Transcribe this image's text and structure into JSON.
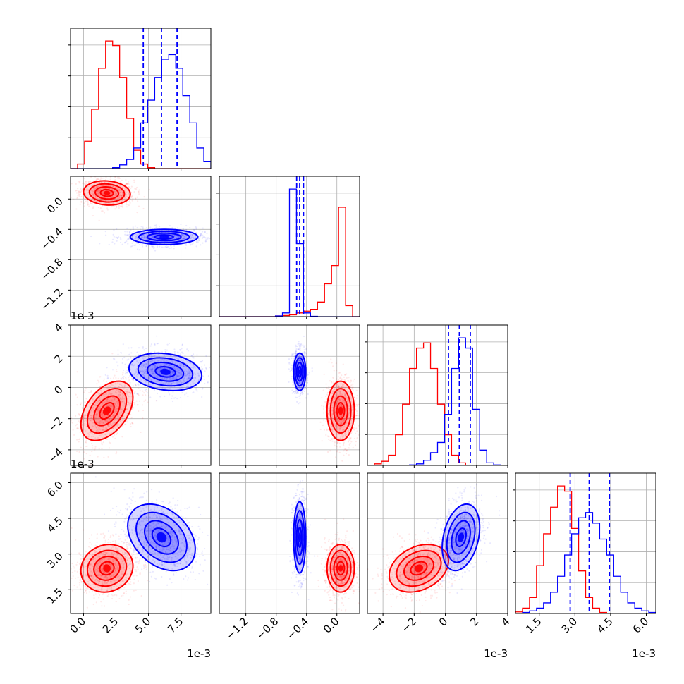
{
  "chart_data": {
    "type": "corner",
    "series": [
      {
        "id": "red",
        "color": "#ff0000"
      },
      {
        "id": "blue",
        "color": "#0000ff"
      }
    ],
    "axis_offsets": [
      "1e-3",
      "1e-3",
      "1e-3",
      "1e-3"
    ],
    "parameters": [
      {
        "index": 0,
        "range": [
          -1.0,
          9.8
        ],
        "ticks": [
          0.0,
          2.5,
          5.0,
          7.5
        ],
        "tick_labels": [
          "0.0",
          "2.5",
          "5.0",
          "7.5"
        ],
        "offset_label": "1e-3",
        "histogram": {
          "bin_edges": [
            -1.0,
            -0.46,
            0.08,
            0.62,
            1.16,
            1.7,
            2.24,
            2.78,
            3.32,
            3.86,
            4.4,
            4.94,
            5.48,
            6.02,
            6.56,
            7.1,
            7.64,
            8.18,
            8.72,
            9.26,
            9.8
          ],
          "red": [
            0,
            10,
            60,
            130,
            220,
            280,
            270,
            200,
            110,
            40,
            10,
            2,
            0,
            0,
            0,
            0,
            0,
            0,
            0,
            0
          ],
          "blue": [
            0,
            0,
            0,
            0,
            0,
            0,
            2,
            8,
            20,
            45,
            100,
            150,
            200,
            240,
            250,
            220,
            160,
            100,
            45,
            15
          ],
          "blue_quantiles": [
            4.6,
            6.0,
            7.2
          ]
        }
      },
      {
        "index": 1,
        "range": [
          -1.55,
          0.3
        ],
        "ticks": [
          -1.2,
          -0.8,
          -0.4,
          0.0
        ],
        "tick_labels": [
          "−1.2",
          "−0.8",
          "−0.4",
          "0.0"
        ],
        "offset_label": "1e-3",
        "histogram": {
          "bin_edges": [
            -1.55,
            -1.4575,
            -1.365,
            -1.2725,
            -1.18,
            -1.0875,
            -0.995,
            -0.9025,
            -0.81,
            -0.7175,
            -0.625,
            -0.5325,
            -0.44,
            -0.3475,
            -0.255,
            -0.1625,
            -0.07,
            0.0225,
            0.115,
            0.2075,
            0.3
          ],
          "red": [
            0,
            0,
            0,
            0,
            0,
            0,
            0,
            0,
            2,
            3,
            5,
            10,
            15,
            20,
            40,
            90,
            140,
            300,
            30,
            0
          ],
          "blue": [
            0,
            0,
            0,
            0,
            0,
            0,
            0,
            0,
            2,
            10,
            350,
            200,
            10,
            1,
            0,
            0,
            0,
            0,
            0,
            0
          ],
          "blue_quantiles": [
            -0.53,
            -0.49,
            -0.44
          ]
        }
      },
      {
        "index": 2,
        "range": [
          -5.0,
          4.0
        ],
        "ticks": [
          -4,
          -2,
          0,
          2,
          4
        ],
        "tick_labels": [
          "−4",
          "−2",
          "0",
          "2",
          "4"
        ],
        "offset_label": "1e-3",
        "histogram": {
          "bin_edges": [
            -5.0,
            -4.55,
            -4.1,
            -3.65,
            -3.2,
            -2.75,
            -2.3,
            -1.85,
            -1.4,
            -0.95,
            -0.5,
            -0.05,
            0.4,
            0.85,
            1.3,
            1.75,
            2.2,
            2.65,
            3.1,
            3.55,
            4.0
          ],
          "red": [
            0,
            3,
            8,
            20,
            60,
            120,
            190,
            230,
            240,
            190,
            120,
            60,
            20,
            5,
            0,
            0,
            0,
            0,
            0,
            0
          ],
          "blue": [
            0,
            0,
            0,
            0,
            0,
            0,
            1,
            3,
            10,
            25,
            45,
            100,
            190,
            250,
            230,
            110,
            30,
            5,
            1,
            0
          ],
          "blue_quantiles": [
            0.2,
            0.9,
            1.6
          ]
        }
      },
      {
        "index": 3,
        "range": [
          0.5,
          6.4
        ],
        "ticks": [
          1.5,
          3.0,
          4.5,
          6.0
        ],
        "tick_labels": [
          "1.5",
          "3.0",
          "4.5",
          "6.0"
        ],
        "offset_label": "1e-3",
        "histogram": {
          "bin_edges": [
            0.5,
            0.795,
            1.09,
            1.385,
            1.68,
            1.975,
            2.27,
            2.565,
            2.86,
            3.155,
            3.45,
            3.745,
            4.04,
            4.335,
            4.63,
            4.925,
            5.22,
            5.515,
            5.81,
            6.105,
            6.4
          ],
          "red": [
            3,
            10,
            30,
            90,
            150,
            200,
            240,
            230,
            160,
            80,
            30,
            10,
            2,
            0,
            0,
            0,
            0,
            0,
            0,
            0
          ],
          "blue": [
            0,
            2,
            5,
            10,
            20,
            40,
            70,
            110,
            150,
            180,
            190,
            170,
            140,
            110,
            70,
            40,
            20,
            10,
            5,
            2
          ],
          "blue_quantiles": [
            2.8,
            3.6,
            4.45
          ]
        }
      }
    ],
    "pairs": [
      {
        "row": 1,
        "col": 0,
        "red": {
          "mean": [
            1.8,
            0.08
          ],
          "sd": [
            0.9,
            0.08
          ],
          "rho": -0.1
        },
        "blue": {
          "mean": [
            6.2,
            -0.5
          ],
          "sd": [
            1.3,
            0.05
          ],
          "rho": 0.0
        }
      },
      {
        "row": 2,
        "col": 0,
        "red": {
          "mean": [
            1.8,
            -1.5
          ],
          "sd": [
            1.0,
            0.95
          ],
          "rho": 0.45
        },
        "blue": {
          "mean": [
            6.3,
            1.0
          ],
          "sd": [
            1.4,
            0.6
          ],
          "rho": -0.2
        }
      },
      {
        "row": 2,
        "col": 1,
        "red": {
          "mean": [
            0.05,
            -1.5
          ],
          "sd": [
            0.09,
            0.95
          ],
          "rho": 0.0
        },
        "blue": {
          "mean": [
            -0.49,
            1.0
          ],
          "sd": [
            0.04,
            0.6
          ],
          "rho": 0.0
        }
      },
      {
        "row": 3,
        "col": 0,
        "red": {
          "mean": [
            1.8,
            2.4
          ],
          "sd": [
            1.0,
            0.5
          ],
          "rho": 0.1
        },
        "blue": {
          "mean": [
            6.0,
            3.7
          ],
          "sd": [
            1.3,
            0.7
          ],
          "rho": -0.35
        }
      },
      {
        "row": 3,
        "col": 1,
        "red": {
          "mean": [
            0.05,
            2.4
          ],
          "sd": [
            0.09,
            0.5
          ],
          "rho": 0.0
        },
        "blue": {
          "mean": [
            -0.49,
            3.7
          ],
          "sd": [
            0.04,
            0.75
          ],
          "rho": 0.0
        }
      },
      {
        "row": 3,
        "col": 2,
        "red": {
          "mean": [
            -1.7,
            2.4
          ],
          "sd": [
            0.95,
            0.5
          ],
          "rho": 0.3
        },
        "blue": {
          "mean": [
            1.0,
            3.7
          ],
          "sd": [
            0.6,
            0.7
          ],
          "rho": 0.3
        }
      }
    ]
  }
}
